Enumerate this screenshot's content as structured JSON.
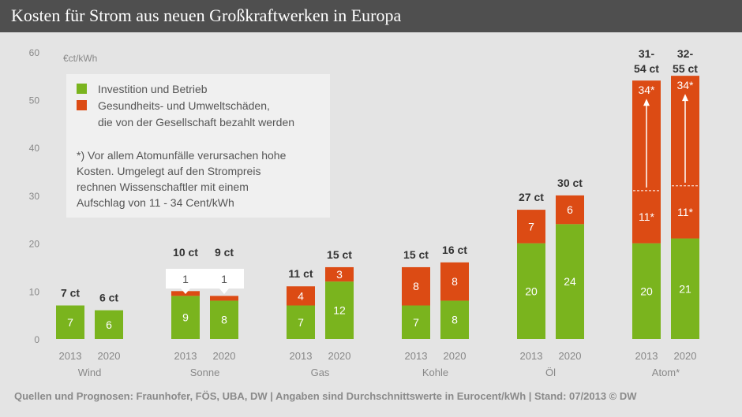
{
  "header": {
    "title": "Kosten für Strom aus neuen Großkraftwerken in Europa"
  },
  "footer": {
    "source": "Quellen und Prognosen: Fraunhofer, FÖS, UBA, DW | Angaben sind Durchschnittswerte in Eurocent/kWh | Stand: 07/2013 © DW"
  },
  "colors": {
    "investment": "#7ab41e",
    "damage": "#dc4b14",
    "background": "#e4e4e4",
    "header": "#4f4f4f",
    "legend_box": "#f0f0f0",
    "text": "#555555"
  },
  "legend": {
    "investment": "Investition und Betrieb",
    "damage_line1": "Gesundheits- und Umweltschäden,",
    "damage_line2": "die von der Gesellschaft bezahlt werden",
    "note_line1": "*) Vor allem Atomunfälle verursachen hohe",
    "note_line2": "Kosten. Umgelegt auf den Strompreis",
    "note_line3": "rechnen Wissenschaftler mit einem",
    "note_line4": "Aufschlag von 11 - 34 Cent/kWh"
  },
  "chart_data": {
    "type": "bar",
    "stacked": true,
    "unit": "€ct/kWh",
    "ylim": [
      0,
      60
    ],
    "yticks": [
      0,
      10,
      20,
      30,
      40,
      50,
      60
    ],
    "grid": false,
    "legend_position": "top-left",
    "groups": [
      {
        "name": "Wind",
        "bars": [
          {
            "year": "2013",
            "total": 7,
            "total_label": "7 ct",
            "investment": 7,
            "damage": 0,
            "investment_label": "7",
            "damage_label": ""
          },
          {
            "year": "2020",
            "total": 6,
            "total_label": "6 ct",
            "investment": 6,
            "damage": 0,
            "investment_label": "6",
            "damage_label": ""
          }
        ]
      },
      {
        "name": "Sonne",
        "bars": [
          {
            "year": "2013",
            "total": 10,
            "total_label": "10 ct",
            "investment": 9,
            "damage": 1,
            "investment_label": "9",
            "damage_label": "1",
            "callout": true
          },
          {
            "year": "2020",
            "total": 9,
            "total_label": "9 ct",
            "investment": 8,
            "damage": 1,
            "investment_label": "8",
            "damage_label": "1",
            "callout": true
          }
        ]
      },
      {
        "name": "Gas",
        "bars": [
          {
            "year": "2013",
            "total": 11,
            "total_label": "11 ct",
            "investment": 7,
            "damage": 4,
            "investment_label": "7",
            "damage_label": "4"
          },
          {
            "year": "2020",
            "total": 15,
            "total_label": "15 ct",
            "investment": 12,
            "damage": 3,
            "investment_label": "12",
            "damage_label": "3"
          }
        ]
      },
      {
        "name": "Kohle",
        "bars": [
          {
            "year": "2013",
            "total": 15,
            "total_label": "15 ct",
            "investment": 7,
            "damage": 8,
            "investment_label": "7",
            "damage_label": "8"
          },
          {
            "year": "2020",
            "total": 16,
            "total_label": "16 ct",
            "investment": 8,
            "damage": 8,
            "investment_label": "8",
            "damage_label": "8"
          }
        ]
      },
      {
        "name": "Öl",
        "bars": [
          {
            "year": "2013",
            "total": 27,
            "total_label": "27 ct",
            "investment": 20,
            "damage": 7,
            "investment_label": "20",
            "damage_label": "7"
          },
          {
            "year": "2020",
            "total": 30,
            "total_label": "30 ct",
            "investment": 24,
            "damage": 6,
            "investment_label": "24",
            "damage_label": "6"
          }
        ]
      },
      {
        "name": "Atom*",
        "bars": [
          {
            "year": "2013",
            "total": 54,
            "total_label_line1": "31-",
            "total_label_line2": "54 ct",
            "investment": 20,
            "damage": 34,
            "damage_min": 11,
            "investment_label": "20",
            "damage_label": "34*",
            "damage_min_label": "11*"
          },
          {
            "year": "2020",
            "total": 55,
            "total_label_line1": "32-",
            "total_label_line2": "55 ct",
            "investment": 21,
            "damage": 34,
            "damage_min": 11,
            "investment_label": "21",
            "damage_label": "34*",
            "damage_min_label": "11*"
          }
        ]
      }
    ]
  }
}
